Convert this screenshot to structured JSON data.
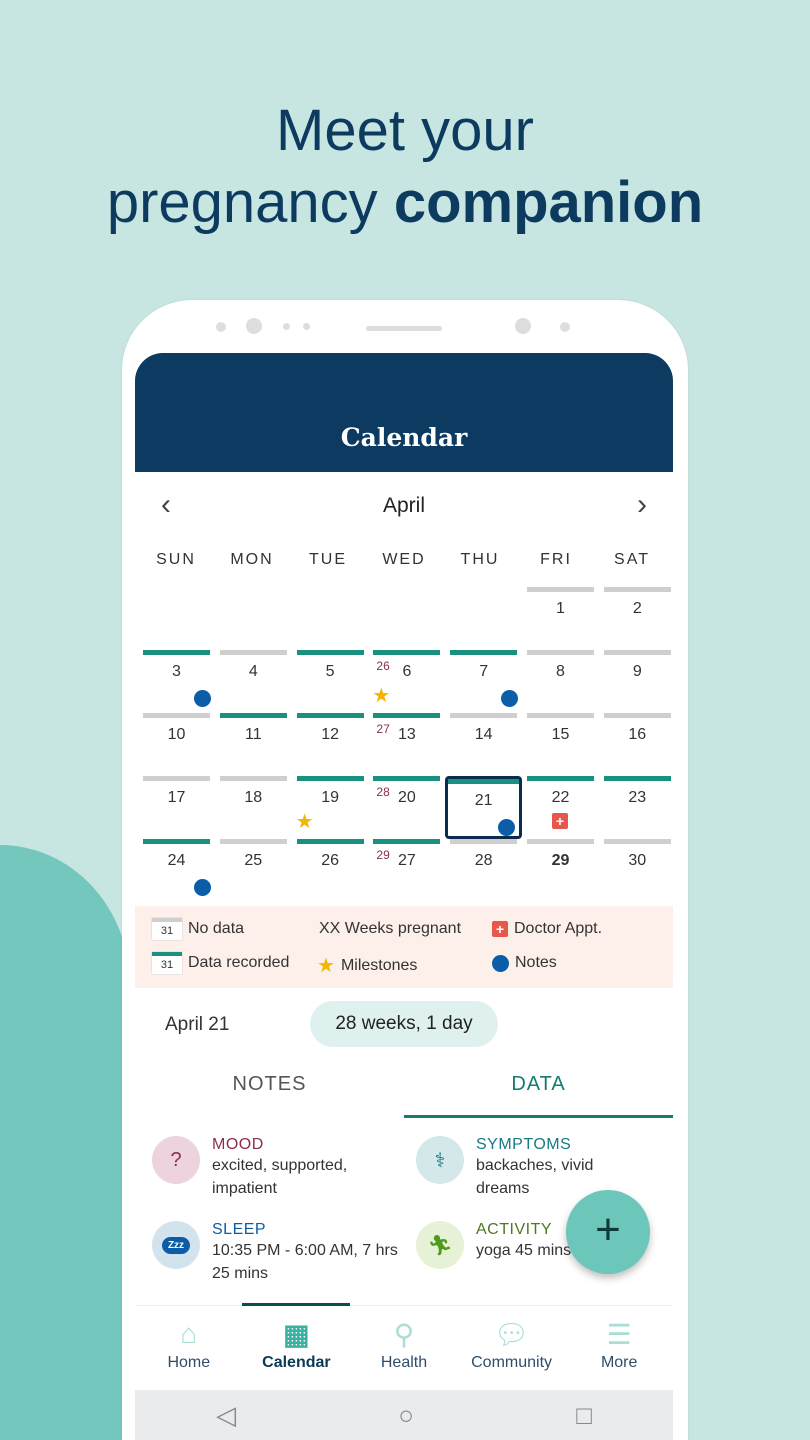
{
  "headline": {
    "line1": "Meet your",
    "line2_regular": "pregnancy ",
    "line2_bold": "companion"
  },
  "header": {
    "title": "Calendar"
  },
  "calendar": {
    "month": "April",
    "prev_icon": "chevron-left-icon",
    "next_icon": "chevron-right-icon",
    "weekdays": [
      "SUN",
      "MON",
      "TUE",
      "WED",
      "THU",
      "FRI",
      "SAT"
    ],
    "first_weekday": 5,
    "days": [
      {
        "n": "1",
        "rec": false
      },
      {
        "n": "2",
        "rec": false
      },
      {
        "n": "3",
        "rec": true,
        "mark": "note"
      },
      {
        "n": "4",
        "rec": false
      },
      {
        "n": "5",
        "rec": true
      },
      {
        "n": "6",
        "rec": true,
        "week": "26",
        "mark": "star"
      },
      {
        "n": "7",
        "rec": true,
        "mark": "note"
      },
      {
        "n": "8",
        "rec": false
      },
      {
        "n": "9",
        "rec": false
      },
      {
        "n": "10",
        "rec": false
      },
      {
        "n": "11",
        "rec": true
      },
      {
        "n": "12",
        "rec": true
      },
      {
        "n": "13",
        "rec": true,
        "week": "27"
      },
      {
        "n": "14",
        "rec": false
      },
      {
        "n": "15",
        "rec": false
      },
      {
        "n": "16",
        "rec": false
      },
      {
        "n": "17",
        "rec": false
      },
      {
        "n": "18",
        "rec": false
      },
      {
        "n": "19",
        "rec": true,
        "mark": "star"
      },
      {
        "n": "20",
        "rec": true,
        "week": "28"
      },
      {
        "n": "21",
        "rec": true,
        "mark": "note",
        "selected": true
      },
      {
        "n": "22",
        "rec": true,
        "mark": "doctor"
      },
      {
        "n": "23",
        "rec": true
      },
      {
        "n": "24",
        "rec": true,
        "mark": "note"
      },
      {
        "n": "25",
        "rec": false
      },
      {
        "n": "26",
        "rec": true
      },
      {
        "n": "27",
        "rec": true,
        "week": "29"
      },
      {
        "n": "28",
        "rec": false
      },
      {
        "n": "29",
        "rec": false,
        "bold": true
      },
      {
        "n": "30",
        "rec": false
      }
    ]
  },
  "legend": {
    "cal_num": "31",
    "no_data": "No data",
    "data_recorded": "Data recorded",
    "weeks": "XX Weeks pregnant",
    "milestones": "Milestones",
    "doctor": "Doctor Appt.",
    "notes": "Notes"
  },
  "summary": {
    "date": "April 21",
    "weeks": "28 weeks, 1 day"
  },
  "tabs": [
    {
      "label": "NOTES",
      "active": false
    },
    {
      "label": "DATA",
      "active": true
    }
  ],
  "data_items": [
    {
      "label": "MOOD",
      "value": "excited, supported, impatient",
      "icon": "head-question-icon"
    },
    {
      "label": "SYMPTOMS",
      "value": "backaches, vivid dreams",
      "icon": "caduceus-icon"
    },
    {
      "label": "SLEEP",
      "value": "10:35 PM - 6:00 AM, 7 hrs 25 mins",
      "icon": "cloud-zzz-icon",
      "badge": "Zzz"
    },
    {
      "label": "ACTIVITY",
      "value": "yoga 45 mins",
      "icon": "running-icon"
    }
  ],
  "fab": {
    "label": "+"
  },
  "nav": [
    {
      "label": "Home",
      "active": false
    },
    {
      "label": "Calendar",
      "active": true
    },
    {
      "label": "Health",
      "active": false
    },
    {
      "label": "Community",
      "active": false
    },
    {
      "label": "More",
      "active": false
    }
  ],
  "colors": {
    "background": "#c7e6e1",
    "header": "#0c3a61",
    "recorded": "#1a9080",
    "no_data": "#cfcfcf",
    "note": "#0c5da8",
    "milestone": "#f2b500",
    "doctor": "#e8574c",
    "accent": "#6cc6b9"
  }
}
